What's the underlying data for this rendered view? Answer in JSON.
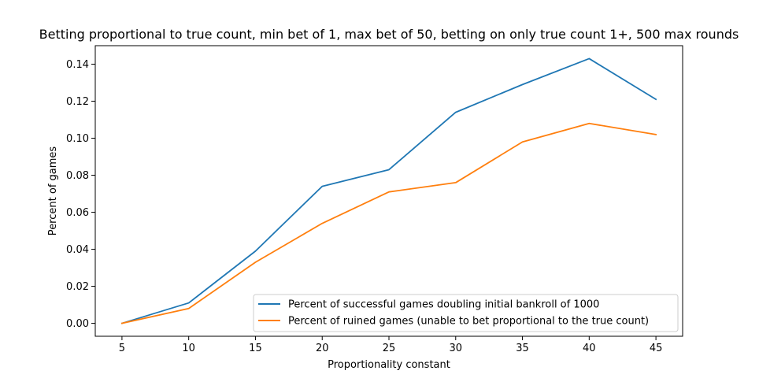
{
  "chart_data": {
    "type": "line",
    "title": "Betting proportional to true count, min bet of 1, max bet of 50, betting on only true count 1+, 500 max rounds",
    "xlabel": "Proportionality constant",
    "ylabel": "Percent of games",
    "x": [
      5,
      10,
      15,
      20,
      25,
      30,
      35,
      40,
      45
    ],
    "xlim": [
      3,
      47
    ],
    "ylim": [
      -0.007,
      0.15
    ],
    "xticks": [
      5,
      10,
      15,
      20,
      25,
      30,
      35,
      40,
      45
    ],
    "xtick_labels": [
      "5",
      "10",
      "15",
      "20",
      "25",
      "30",
      "35",
      "40",
      "45"
    ],
    "yticks": [
      0,
      0.02,
      0.04,
      0.06,
      0.08,
      0.1,
      0.12,
      0.14
    ],
    "ytick_labels": [
      "0.00",
      "0.02",
      "0.04",
      "0.06",
      "0.08",
      "0.10",
      "0.12",
      "0.14"
    ],
    "grid": false,
    "legend_position": "lower-right",
    "series": [
      {
        "name": "Percent of successful games doubling initial bankroll of 1000",
        "color": "#1f77b4",
        "values": [
          0.0,
          0.011,
          0.039,
          0.074,
          0.083,
          0.114,
          0.129,
          0.143,
          0.121
        ]
      },
      {
        "name": "Percent of ruined games (unable to bet proportional to the true count)",
        "color": "#ff7f0e",
        "values": [
          0.0,
          0.008,
          0.033,
          0.054,
          0.071,
          0.076,
          0.098,
          0.108,
          0.102
        ]
      }
    ]
  }
}
